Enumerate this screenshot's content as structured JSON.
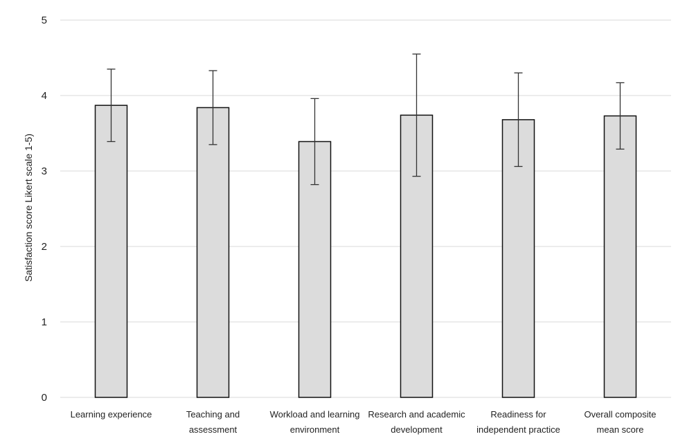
{
  "chart_data": {
    "type": "bar",
    "title": "",
    "xlabel": "",
    "ylabel": "Satisfaction score Likert scale 1-5)",
    "ylim": [
      0,
      5
    ],
    "yticks": [
      0,
      1,
      2,
      3,
      4,
      5
    ],
    "grid": true,
    "legend": "none",
    "categories": [
      [
        "Learning experience"
      ],
      [
        "Teaching and",
        "assessment"
      ],
      [
        "Workload and learning",
        "environment"
      ],
      [
        "Research and academic",
        "development"
      ],
      [
        "Readiness for",
        "independent practice"
      ],
      [
        "Overall composite",
        "mean score"
      ]
    ],
    "values": [
      3.87,
      3.84,
      3.39,
      3.74,
      3.68,
      3.73
    ],
    "error_low": [
      3.39,
      3.35,
      2.82,
      2.93,
      3.06,
      3.29
    ],
    "error_high": [
      4.35,
      4.33,
      3.96,
      4.55,
      4.3,
      4.17
    ],
    "colors": {
      "bar_fill": "#dcdcdc",
      "bar_stroke": "#111111",
      "error_bar": "#333333",
      "gridline": "#d9d9d9",
      "axis_line": "#d9d9d9"
    }
  }
}
